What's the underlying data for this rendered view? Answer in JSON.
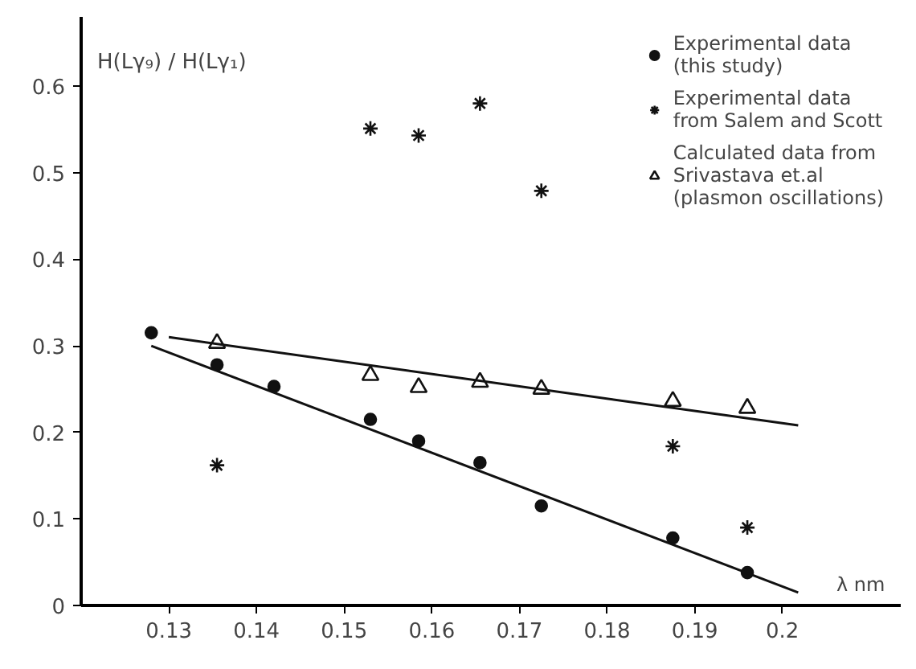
{
  "chart_data": {
    "type": "scatter",
    "ylabel": "H(Lγ₉) / H(Lγ₁)",
    "xlabel": "λ nm",
    "xlim": [
      0.12,
      0.2135
    ],
    "ylim": [
      0,
      0.68
    ],
    "xticks": [
      0.13,
      0.14,
      0.15,
      0.16,
      0.17,
      0.18,
      0.19,
      {
        "value": 0.2,
        "label": "0.2"
      }
    ],
    "yticks": [
      0,
      0.1,
      0.2,
      0.3,
      0.4,
      0.5,
      0.6
    ],
    "grid": false,
    "legend": "top right",
    "series": [
      {
        "name": "Experimental data\n(this study)",
        "color": "#111111",
        "marker": "circle",
        "x": [
          0.128,
          0.1355,
          0.142,
          0.153,
          0.1585,
          0.1655,
          0.1725,
          0.1875,
          0.196
        ],
        "values": [
          0.315,
          0.278,
          0.253,
          0.215,
          0.19,
          0.165,
          0.115,
          0.078,
          0.038
        ]
      },
      {
        "name": "Experimental data\nfrom Salem and Scott",
        "color": "#111111",
        "marker": "cross",
        "x": [
          0.1355,
          0.153,
          0.1585,
          0.1655,
          0.1725,
          0.1875,
          0.196
        ],
        "values": [
          0.162,
          0.551,
          0.543,
          0.58,
          0.479,
          0.184,
          0.09
        ]
      },
      {
        "name": "Calculated data from\nSrivastava et.al\n(plasmon oscillations)",
        "color": "#111111",
        "marker": "triangle",
        "x": [
          0.1355,
          0.153,
          0.1585,
          0.1655,
          0.1725,
          0.1875,
          0.196
        ],
        "values": [
          0.303,
          0.266,
          0.252,
          0.258,
          0.25,
          0.236,
          0.228
        ]
      },
      {
        "type": "line",
        "color": "#111111",
        "marker": "none",
        "x": [
          0.128,
          0.2018
        ],
        "values": [
          0.3,
          0.015
        ]
      },
      {
        "type": "line",
        "color": "#111111",
        "marker": "none",
        "x": [
          0.13,
          0.2018
        ],
        "values": [
          0.31,
          0.208
        ]
      }
    ]
  }
}
